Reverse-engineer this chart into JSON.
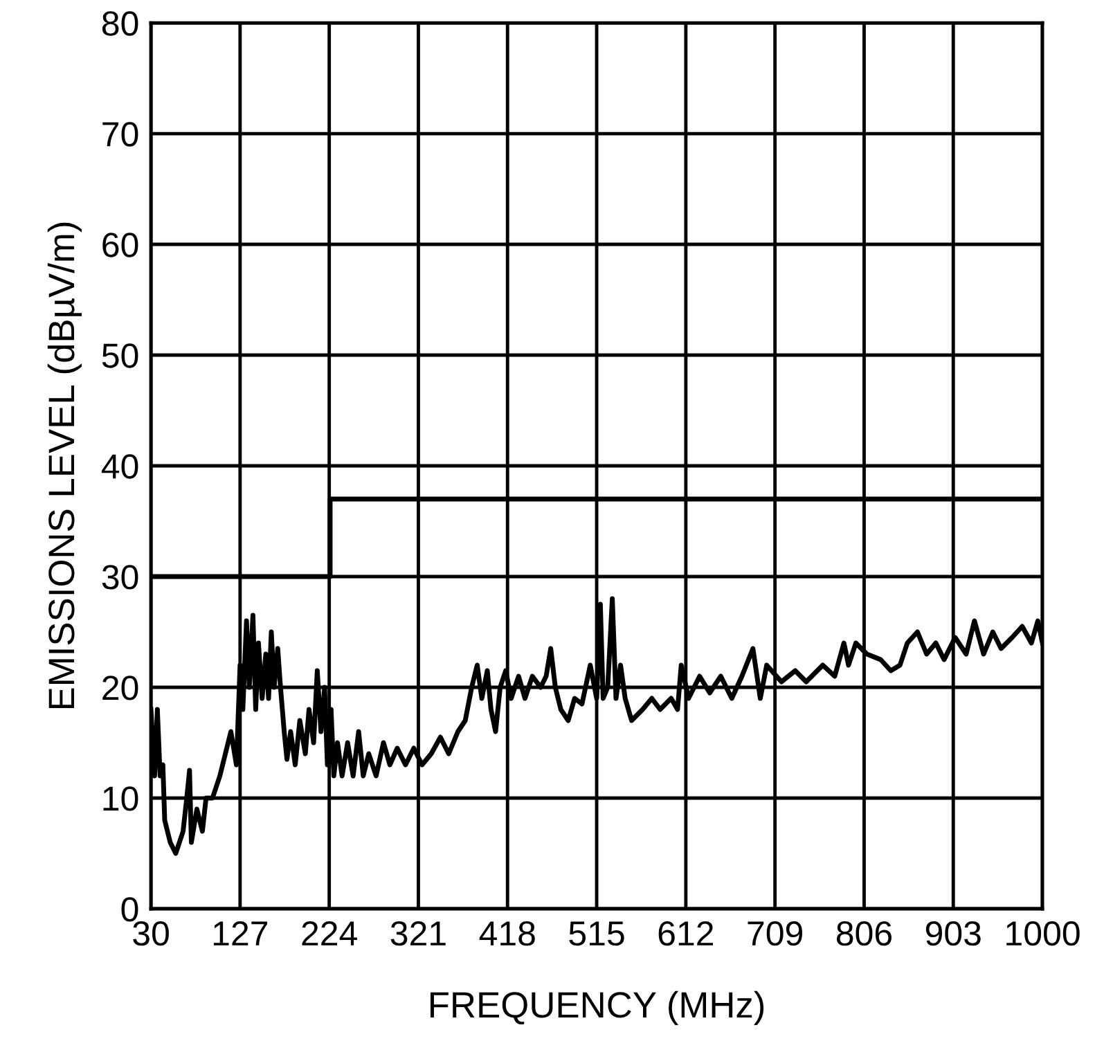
{
  "chart_data": {
    "type": "line",
    "xlabel": "FREQUENCY (MHz)",
    "ylabel": "EMISSIONS LEVEL (dBµV/m)",
    "xlim": [
      30,
      1000
    ],
    "xticks": [
      30,
      127,
      224,
      321,
      418,
      515,
      612,
      709,
      806,
      903,
      1000
    ],
    "ylim": [
      0,
      80
    ],
    "yticks": [
      0,
      10,
      20,
      30,
      40,
      50,
      60,
      70,
      80
    ],
    "grid": true,
    "marker": "none",
    "line_style": "solid",
    "series": [
      {
        "color": "#000000",
        "x": [
          30,
          34,
          37,
          40,
          43,
          45,
          51,
          57,
          65,
          69,
          72,
          74,
          80,
          86,
          90,
          97,
          105,
          111,
          117,
          123,
          127,
          130,
          134,
          137,
          141,
          144,
          147,
          151,
          155,
          158,
          161,
          164,
          168,
          171,
          175,
          178,
          182,
          187,
          192,
          198,
          202,
          207,
          211,
          215,
          219,
          222,
          226,
          229,
          233,
          238,
          244,
          250,
          256,
          261,
          267,
          275,
          283,
          290,
          298,
          307,
          316,
          325,
          335,
          345,
          354,
          364,
          372,
          379,
          385,
          390,
          396,
          400,
          405,
          410,
          416,
          422,
          430,
          437,
          445,
          454,
          460,
          465,
          470,
          476,
          484,
          491,
          499,
          508,
          515,
          519,
          522,
          527,
          532,
          536,
          541,
          546,
          553,
          565,
          575,
          584,
          596,
          603,
          607,
          615,
          627,
          638,
          650,
          662,
          673,
          685,
          693,
          700,
          716,
          731,
          743,
          761,
          774,
          784,
          789,
          797,
          809,
          824,
          835,
          845,
          853,
          864,
          874,
          884,
          893,
          905,
          917,
          926,
          936,
          946,
          955,
          967,
          978,
          988,
          995,
          1000
        ],
        "values": [
          18,
          12,
          18,
          12,
          13,
          8,
          6,
          5,
          7,
          10,
          12.5,
          6,
          9,
          7,
          10,
          10,
          12,
          14,
          16,
          13,
          22,
          18,
          26,
          20,
          26.5,
          18,
          24,
          19,
          23,
          19,
          25,
          20,
          23.5,
          20,
          16,
          13.5,
          16,
          13,
          17,
          14,
          18,
          15,
          21.5,
          16,
          20,
          13,
          18,
          12,
          15,
          12,
          15,
          12,
          16,
          12,
          14,
          12,
          15,
          13,
          14.5,
          13,
          14.5,
          13,
          14,
          15.5,
          14,
          16,
          17,
          20,
          22,
          19,
          21.5,
          18,
          16,
          20,
          21.5,
          19,
          21,
          19,
          21,
          20,
          21,
          23.5,
          20,
          18,
          17,
          19,
          18.5,
          22,
          19,
          27.5,
          19,
          20,
          28,
          19,
          22,
          19,
          17,
          18,
          19,
          18,
          19,
          18,
          22,
          19,
          21,
          19.5,
          21,
          19,
          21,
          23.5,
          19,
          22,
          20.5,
          21.5,
          20.5,
          22,
          21,
          24,
          22,
          24,
          23,
          22.5,
          21.5,
          22,
          24,
          25,
          23,
          24,
          22.5,
          24.5,
          23,
          26,
          23,
          25,
          23.5,
          24.5,
          25.5,
          24,
          26,
          24
        ]
      },
      {
        "color": "#000000",
        "x": [
          30,
          225,
          225,
          1000
        ],
        "values": [
          30,
          30,
          37,
          37
        ]
      }
    ]
  }
}
